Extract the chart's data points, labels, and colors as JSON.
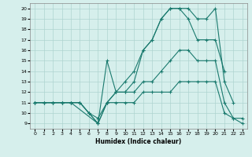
{
  "xlabel": "Humidex (Indice chaleur)",
  "xlim": [
    -0.5,
    23.5
  ],
  "ylim": [
    8.5,
    20.5
  ],
  "yticks": [
    9,
    10,
    11,
    12,
    13,
    14,
    15,
    16,
    17,
    18,
    19,
    20
  ],
  "xticks": [
    0,
    1,
    2,
    3,
    4,
    5,
    6,
    7,
    8,
    9,
    10,
    11,
    12,
    13,
    14,
    15,
    16,
    17,
    18,
    19,
    20,
    21,
    22,
    23
  ],
  "bg_color": "#d6efec",
  "grid_color": "#aed4d0",
  "line_color": "#1a7a6e",
  "lines": [
    {
      "x": [
        0,
        2,
        3,
        4,
        7,
        8,
        9,
        10,
        11,
        12,
        13,
        14,
        15,
        16,
        17,
        18,
        19,
        20,
        21
      ],
      "y": [
        11,
        11,
        11,
        11,
        9,
        15,
        12,
        13,
        14,
        16,
        17,
        19,
        20,
        20,
        19,
        17,
        17,
        17,
        14
      ]
    },
    {
      "x": [
        0,
        1,
        2,
        3,
        4,
        5,
        6,
        7,
        8,
        9,
        10,
        11,
        12,
        13,
        14,
        15,
        16,
        17,
        18,
        19,
        20,
        21,
        22,
        23
      ],
      "y": [
        11,
        11,
        11,
        11,
        11,
        11,
        10,
        9,
        11,
        12,
        12,
        13,
        16,
        17,
        19,
        20,
        20,
        20,
        19,
        19,
        20,
        13,
        11,
        null
      ]
    },
    {
      "x": [
        0,
        1,
        2,
        3,
        4,
        5,
        6,
        7,
        8,
        9,
        10,
        11,
        12,
        13,
        14,
        15,
        16,
        17,
        18,
        19,
        20,
        21,
        22,
        23
      ],
      "y": [
        11,
        11,
        11,
        11,
        11,
        11,
        10,
        9,
        11,
        12,
        12,
        12,
        13,
        13,
        14,
        15,
        16,
        16,
        15,
        15,
        15,
        11,
        9.5,
        9.5
      ]
    },
    {
      "x": [
        0,
        1,
        2,
        3,
        4,
        5,
        6,
        7,
        8,
        9,
        10,
        11,
        12,
        13,
        14,
        15,
        16,
        17,
        18,
        19,
        20,
        21,
        22,
        23
      ],
      "y": [
        11,
        11,
        11,
        11,
        11,
        11,
        10,
        9.5,
        11,
        11,
        11,
        11,
        12,
        12,
        12,
        12,
        13,
        13,
        13,
        13,
        13,
        10,
        9.5,
        9
      ]
    }
  ]
}
